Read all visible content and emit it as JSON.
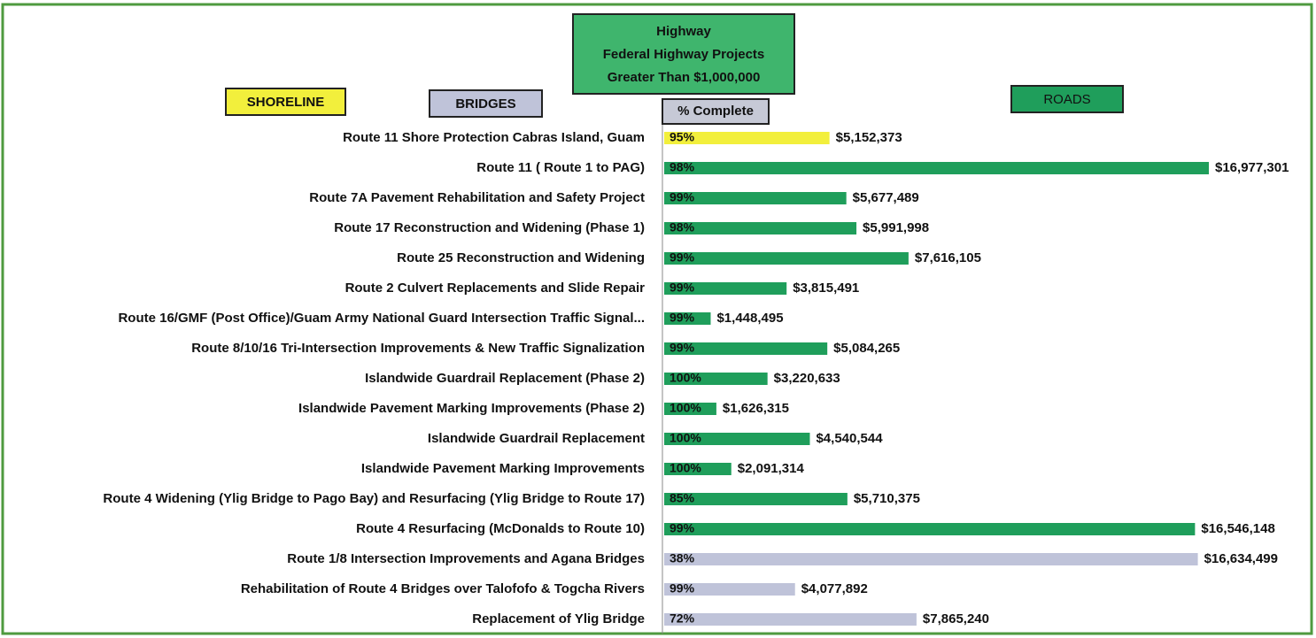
{
  "chart_data": {
    "type": "hbar",
    "title": [
      "Highway",
      "Federal Highway Projects",
      "Greater Than $1,000,000"
    ],
    "legend": [
      {
        "name": "SHORELINE",
        "color": "#f2ef3c"
      },
      {
        "name": "BRIDGES",
        "color": "#bfc3d9"
      },
      {
        "name": "ROADS",
        "color": "#1f9e5b"
      }
    ],
    "percent_header": "% Complete",
    "categories": [
      "Route 11 Shore Protection Cabras Island, Guam",
      "Route 11 ( Route 1 to PAG)",
      "Route 7A Pavement Rehabilitation and Safety Project",
      "Route 17 Reconstruction and Widening (Phase 1)",
      "Route 25 Reconstruction and Widening",
      "Route 2 Culvert Replacements and Slide Repair",
      "Route 16/GMF (Post Office)/Guam Army National Guard Intersection Traffic Signal...",
      "Route 8/10/16 Tri-Intersection Improvements & New Traffic Signalization",
      "Islandwide Guardrail Replacement (Phase 2)",
      "Islandwide Pavement Marking Improvements (Phase 2)",
      "Islandwide Guardrail Replacement",
      "Islandwide Pavement Marking Improvements",
      "Route 4 Widening (Ylig Bridge to Pago Bay) and Resurfacing (Ylig Bridge to Route 17)",
      "Route 4 Resurfacing (McDonalds to Route 10)",
      "Route 1/8 Intersection Improvements and Agana Bridges",
      "Rehabilitation of Route 4 Bridges over Talofofo & Togcha Rivers",
      "Replacement of Ylig Bridge"
    ],
    "values": [
      5152373,
      16977301,
      5677489,
      5991998,
      7616105,
      3815491,
      1448495,
      5084265,
      3220633,
      1626315,
      4540544,
      2091314,
      5710375,
      16546148,
      16634499,
      4077892,
      7865240
    ],
    "value_labels": [
      "$5,152,373",
      "$16,977,301",
      "$5,677,489",
      "$5,991,998",
      "$7,616,105",
      "$3,815,491",
      "$1,448,495",
      "$5,084,265",
      "$3,220,633",
      "$1,626,315",
      "$4,540,544",
      "$2,091,314",
      "$5,710,375",
      "$16,546,148",
      "$16,634,499",
      "$4,077,892",
      "$7,865,240"
    ],
    "colors": [
      "#f2ef3c",
      "#1f9e5b",
      "#1f9e5b",
      "#1f9e5b",
      "#1f9e5b",
      "#1f9e5b",
      "#1f9e5b",
      "#1f9e5b",
      "#1f9e5b",
      "#1f9e5b",
      "#1f9e5b",
      "#1f9e5b",
      "#1f9e5b",
      "#1f9e5b",
      "#bfc3d9",
      "#bfc3d9",
      "#bfc3d9"
    ],
    "percent_complete": {
      "values": [
        95,
        98,
        99,
        98,
        99,
        99,
        99,
        99,
        100,
        100,
        100,
        100,
        85,
        99,
        38,
        99,
        72
      ],
      "labels": [
        "95%",
        "98%",
        "99%",
        "98%",
        "99%",
        "99%",
        "99%",
        "99%",
        "100%",
        "100%",
        "100%",
        "100%",
        "85%",
        "99%",
        "38%",
        "99%",
        "72%"
      ]
    }
  }
}
